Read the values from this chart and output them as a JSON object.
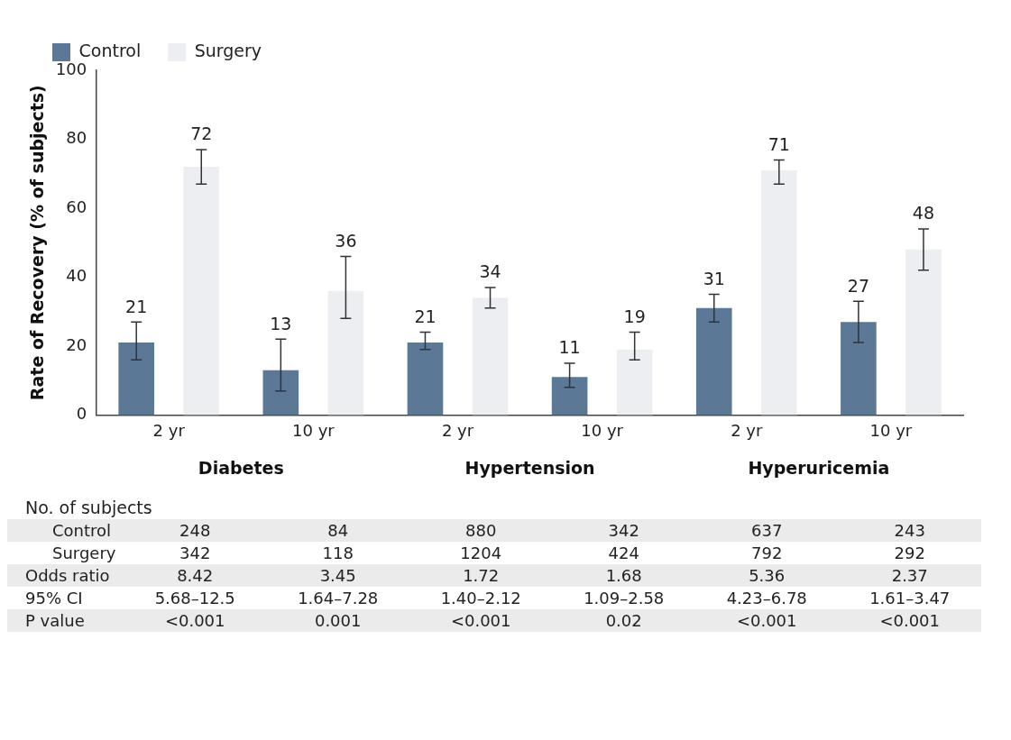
{
  "chart_data": {
    "type": "bar",
    "ylabel": "Rate of Recovery (% of subjects)",
    "categories": [
      "2 yr",
      "10 yr",
      "2 yr",
      "10 yr",
      "2 yr",
      "10 yr"
    ],
    "series": [
      {
        "name": "Control",
        "color": "#5b7896",
        "values": [
          21,
          13,
          21,
          11,
          31,
          27
        ],
        "errors": [
          [
            16,
            27
          ],
          [
            7,
            22
          ],
          [
            19,
            24
          ],
          [
            8,
            15
          ],
          [
            27,
            35
          ],
          [
            21,
            33
          ]
        ]
      },
      {
        "name": "Surgery",
        "color": "#eceef2",
        "values": [
          72,
          36,
          34,
          19,
          71,
          48
        ],
        "errors": [
          [
            67,
            77
          ],
          [
            28,
            46
          ],
          [
            31,
            37
          ],
          [
            16,
            24
          ],
          [
            67,
            74
          ],
          [
            42,
            54
          ]
        ]
      }
    ],
    "ylim": [
      0,
      100
    ],
    "yticks": [
      0,
      20,
      40,
      60,
      80,
      100
    ],
    "grid": false,
    "legend": "top left",
    "data_labels": true,
    "annotations": [
      "Diabetes",
      "Hypertension",
      "Hyperuricemia",
      "No. of subjects",
      "Control",
      "248",
      "84",
      "880",
      "342",
      "637",
      "243",
      "Surgery",
      "342",
      "118",
      "1204",
      "424",
      "792",
      "292",
      "Odds ratio",
      "8.42",
      "3.45",
      "1.72",
      "1.68",
      "5.36",
      "2.37",
      "95% CI",
      "5.68–12.5",
      "1.64–7.28",
      "1.40–2.12",
      "1.09–2.58",
      "4.23–6.78",
      "1.61–3.47",
      "P value",
      "<0.001",
      "0.001",
      "<0.001",
      "0.02",
      "<0.001",
      "<0.001"
    ]
  }
}
